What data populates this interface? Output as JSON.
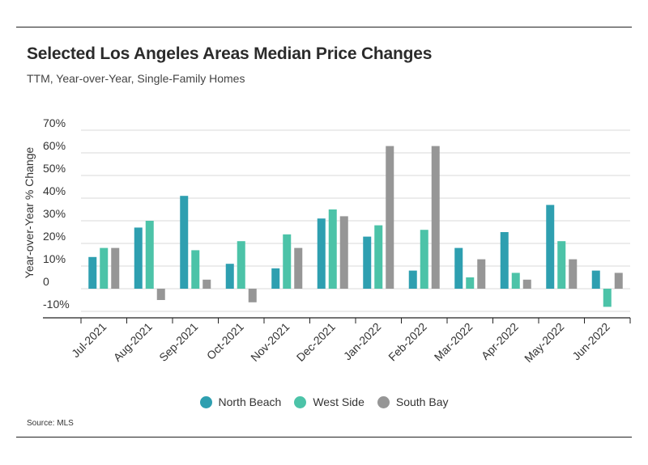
{
  "title": "Selected Los Angeles Areas Median Price Changes",
  "subtitle": "TTM, Year-over-Year, Single-Family Homes",
  "source": "Source:  MLS",
  "legend_items": [
    {
      "label": "North Beach",
      "color": "#2e9fb0"
    },
    {
      "label": "West Side",
      "color": "#4cc3a8"
    },
    {
      "label": "South Bay",
      "color": "#969696"
    }
  ],
  "chart_data": {
    "type": "bar",
    "title": "Selected Los Angeles Areas Median Price Changes",
    "subtitle": "TTM, Year-over-Year, Single-Family Homes",
    "xlabel": "",
    "ylabel": "Year-over-Year % Change",
    "ylim": [
      -12,
      72
    ],
    "y_ticks": [
      -10,
      0,
      10,
      20,
      30,
      40,
      50,
      60,
      70
    ],
    "y_tick_labels": [
      "-10%",
      "0",
      "10%",
      "20%",
      "30%",
      "40%",
      "50%",
      "60%",
      "70%"
    ],
    "grid": true,
    "legend_position": "bottom",
    "categories": [
      "Jul-2021",
      "Aug-2021",
      "Sep-2021",
      "Oct-2021",
      "Nov-2021",
      "Dec-2021",
      "Jan-2022",
      "Feb-2022",
      "Mar-2022",
      "Apr-2022",
      "May-2022",
      "Jun-2022"
    ],
    "series": [
      {
        "name": "North Beach",
        "color": "#2e9fb0",
        "values": [
          14,
          27,
          41,
          11,
          9,
          31,
          23,
          8,
          18,
          25,
          37,
          8
        ]
      },
      {
        "name": "West Side",
        "color": "#4cc3a8",
        "values": [
          18,
          30,
          17,
          21,
          24,
          35,
          28,
          26,
          5,
          7,
          21,
          -8
        ]
      },
      {
        "name": "South Bay",
        "color": "#969696",
        "values": [
          18,
          -5,
          4,
          -6,
          18,
          32,
          63,
          63,
          13,
          4,
          13,
          7
        ]
      }
    ]
  }
}
